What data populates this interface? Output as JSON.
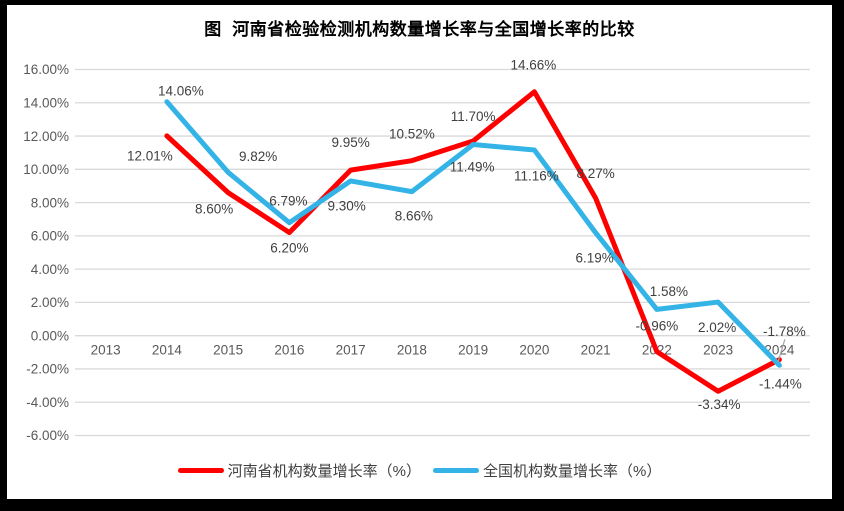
{
  "frame": {
    "border_color": "#000000",
    "page_background": "#FFFFFF"
  },
  "chart_data": {
    "type": "line",
    "title": "图  河南省检验检测机构数量增长率与全国增长率的比较",
    "categories": [
      "2013",
      "2014",
      "2015",
      "2016",
      "2017",
      "2018",
      "2019",
      "2020",
      "2021",
      "2022",
      "2023",
      "2024"
    ],
    "series": [
      {
        "name": "河南省机构数量增长率（%）",
        "color": "#FF0000",
        "values": [
          null,
          12.01,
          8.6,
          6.2,
          9.95,
          10.52,
          11.7,
          14.66,
          8.27,
          -0.96,
          -3.34,
          -1.44
        ]
      },
      {
        "name": "全国机构数量增长率（%）",
        "color": "#33B3E6",
        "values": [
          null,
          14.06,
          9.82,
          6.79,
          9.3,
          8.66,
          11.49,
          11.16,
          6.19,
          1.58,
          2.02,
          -1.78
        ]
      }
    ],
    "ylim": [
      -6,
      16
    ],
    "y_tick_step": 2,
    "y_tick_labels": [
      "16.00%",
      "14.00%",
      "12.00%",
      "10.00%",
      "8.00%",
      "6.00%",
      "4.00%",
      "2.00%",
      "0.00%",
      "-2.00%",
      "-4.00%",
      "-6.00%"
    ],
    "grid": true,
    "data_labels": true,
    "legend_position": "bottom",
    "colors": {
      "gridline": "#D9D9D9",
      "axis_text": "#595959",
      "data_label_text": "#404040",
      "leader_line": "#A6A6A6",
      "title_text": "#000000",
      "legend_text": "#404040"
    }
  }
}
